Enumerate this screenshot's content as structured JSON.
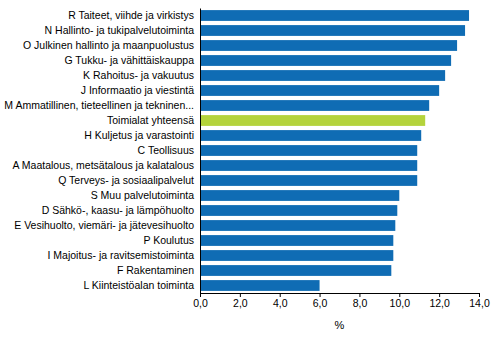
{
  "chart_data": {
    "type": "bar",
    "orientation": "horizontal",
    "categories": [
      "R Taiteet, viihde ja virkistys",
      "N Hallinto- ja tukipalvelutoiminta",
      "O Julkinen hallinto ja maanpuolustus",
      "G Tukku- ja vähittäiskauppa",
      "K Rahoitus- ja vakuutus",
      "J Informaatio ja viestintä",
      "M Ammatillinen, tieteellinen ja tekninen...",
      "Toimialat yhteensä",
      "H Kuljetus ja varastointi",
      "C Teollisuus",
      "A Maatalous, metsätalous ja kalatalous",
      "Q Terveys- ja sosiaalipalvelut",
      "S Muu palvelutoiminta",
      "D Sähkö-, kaasu- ja lämpöhuolto",
      "E Vesihuolto, viemäri- ja jätevesihuolto",
      "P Koulutus",
      "I Majoitus- ja ravitsemistoiminta",
      "F Rakentaminen",
      "L Kiinteistöalan toiminta"
    ],
    "values": [
      13.5,
      13.3,
      12.9,
      12.6,
      12.3,
      12.0,
      11.5,
      11.3,
      11.1,
      10.9,
      10.9,
      10.9,
      10.0,
      9.9,
      9.8,
      9.7,
      9.7,
      9.6,
      6.0
    ],
    "colors": [
      "#0f6cb4",
      "#0f6cb4",
      "#0f6cb4",
      "#0f6cb4",
      "#0f6cb4",
      "#0f6cb4",
      "#0f6cb4",
      "#b4d33c",
      "#0f6cb4",
      "#0f6cb4",
      "#0f6cb4",
      "#0f6cb4",
      "#0f6cb4",
      "#0f6cb4",
      "#0f6cb4",
      "#0f6cb4",
      "#0f6cb4",
      "#0f6cb4",
      "#0f6cb4"
    ],
    "x_label": "%",
    "xlim": [
      0,
      14
    ],
    "xticks": [
      {
        "value": 0,
        "label": "0,0"
      },
      {
        "value": 2,
        "label": "2,0"
      },
      {
        "value": 4,
        "label": "4,0"
      },
      {
        "value": 6,
        "label": "6,0"
      },
      {
        "value": 8,
        "label": "8,0"
      },
      {
        "value": 10,
        "label": "10,0"
      },
      {
        "value": 12,
        "label": "12,0"
      },
      {
        "value": 14,
        "label": "14,0"
      }
    ],
    "grid": false
  }
}
